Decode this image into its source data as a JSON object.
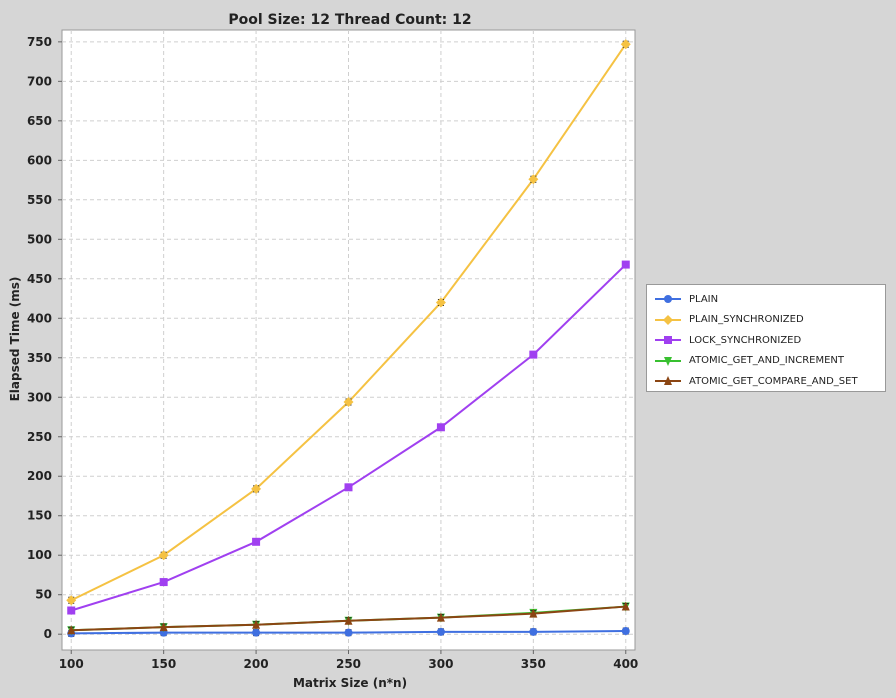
{
  "chart_data": {
    "type": "line",
    "title": "Pool Size: 12 Thread Count: 12",
    "xlabel": "Matrix Size (n*n)",
    "ylabel": "Elapsed Time (ms)",
    "x": [
      100,
      150,
      200,
      250,
      300,
      350,
      400
    ],
    "xlim": [
      95,
      405
    ],
    "ylim": [
      -20,
      765
    ],
    "xticks": [
      "100",
      "150",
      "200",
      "250",
      "300",
      "350",
      "400"
    ],
    "yticks": [
      "0",
      "50",
      "100",
      "150",
      "200",
      "250",
      "300",
      "350",
      "400",
      "450",
      "500",
      "550",
      "600",
      "650",
      "700",
      "750"
    ],
    "grid": true,
    "legend_position": "right",
    "series": [
      {
        "name": "PLAIN",
        "color": "#3f6fe0",
        "marker": "circle",
        "values": [
          1,
          2,
          2,
          2,
          3,
          3,
          4
        ]
      },
      {
        "name": "PLAIN_SYNCHRONIZED",
        "color": "#f5c243",
        "marker": "diamond",
        "values": [
          43,
          100,
          184,
          294,
          420,
          576,
          747
        ]
      },
      {
        "name": "LOCK_SYNCHRONIZED",
        "color": "#a040f0",
        "marker": "square",
        "values": [
          30,
          66,
          117,
          186,
          262,
          354,
          468
        ]
      },
      {
        "name": "ATOMIC_GET_AND_INCREMENT",
        "color": "#38c030",
        "marker": "triangle-down",
        "values": [
          5,
          9,
          12,
          17,
          21,
          27,
          35
        ]
      },
      {
        "name": "ATOMIC_GET_COMPARE_AND_SET",
        "color": "#8b4513",
        "marker": "triangle-up",
        "values": [
          5,
          9,
          12,
          17,
          21,
          26,
          35
        ]
      }
    ]
  }
}
